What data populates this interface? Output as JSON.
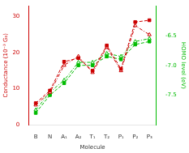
{
  "chart_data": {
    "type": "line",
    "xlabel": "Molecule",
    "ylabel": "Conductance (10⁻³ G₀)",
    "y2label": "HOMO level (eV)",
    "categories": [
      "B",
      "N",
      "A₁",
      "A₂",
      "T₁",
      "T₂",
      "P₁",
      "P₂",
      "P₃"
    ],
    "series": [
      {
        "color": "#cc0000",
        "marker": "square",
        "line_style": "dashed",
        "values": [
          6.0,
          9.5,
          17.5,
          18.5,
          15.0,
          22.0,
          15.5,
          28.5,
          29.0
        ]
      },
      {
        "color": "#cc0000",
        "marker": "triangle",
        "line_style": "dashdot",
        "values": [
          5.5,
          9.0,
          16.5,
          19.0,
          14.5,
          21.5,
          15.0,
          27.5,
          25.0
        ]
      },
      {
        "color": "#00bb00",
        "marker": "square",
        "line_style": "dashed",
        "axis": "y2",
        "values": [
          -7.8,
          -7.5,
          -7.3,
          -7.0,
          -7.0,
          -6.85,
          -6.9,
          -6.65,
          -6.6
        ]
      },
      {
        "color": "#00bb00",
        "marker": "triangle",
        "line_style": "dashdot",
        "axis": "y2",
        "values": [
          -7.75,
          -7.45,
          -7.25,
          -6.95,
          -6.95,
          -6.8,
          -6.85,
          -6.6,
          -6.55
        ]
      }
    ],
    "ylim": [
      0,
      33
    ],
    "yticks": [
      0,
      10,
      20,
      30
    ],
    "y2lim": [
      -8.0,
      -6.0
    ],
    "y2ticks": [
      -7.5,
      {
        "value": -7.0,
        "label": "-7.0"
      },
      -6.5
    ],
    "grid": false,
    "legend": false
  }
}
